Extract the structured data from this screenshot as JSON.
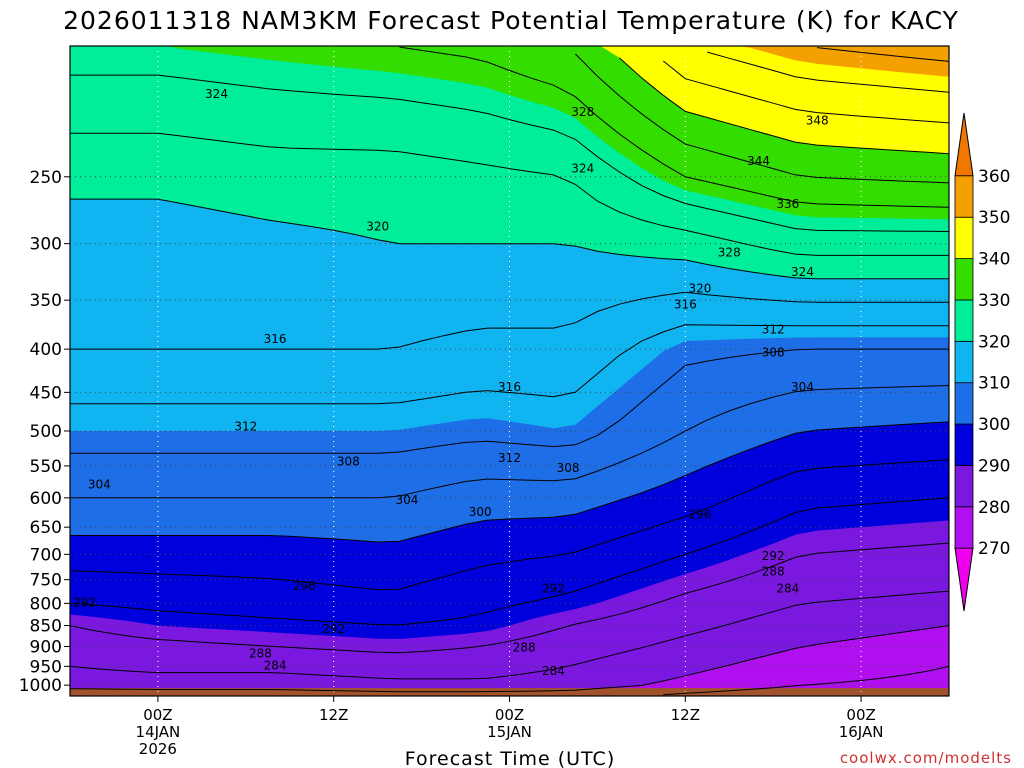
{
  "chart_data": {
    "type": "heatmap",
    "title": "2026011318 NAM3KM Forecast Potential Temperature (K) for KACY",
    "xlabel": "Forecast Time (UTC)",
    "ylabel": "",
    "credit": "coolwx.com/modelts",
    "x_range_hours": [
      -6,
      54
    ],
    "y_range_hpa": [
      1030,
      175
    ],
    "y_ticks": [
      {
        "value": 250,
        "label": "250"
      },
      {
        "value": 300,
        "label": "300"
      },
      {
        "value": 350,
        "label": "350"
      },
      {
        "value": 400,
        "label": "400"
      },
      {
        "value": 450,
        "label": "450"
      },
      {
        "value": 500,
        "label": "500"
      },
      {
        "value": 550,
        "label": "550"
      },
      {
        "value": 600,
        "label": "600"
      },
      {
        "value": 650,
        "label": "650"
      },
      {
        "value": 700,
        "label": "700"
      },
      {
        "value": 750,
        "label": "750"
      },
      {
        "value": 800,
        "label": "800"
      },
      {
        "value": 850,
        "label": "850"
      },
      {
        "value": 900,
        "label": "900"
      },
      {
        "value": 950,
        "label": "950"
      },
      {
        "value": 1000,
        "label": "1000"
      }
    ],
    "x_ticks": [
      {
        "hour": 0,
        "lines": [
          "00Z",
          "14JAN",
          "2026"
        ]
      },
      {
        "hour": 12,
        "lines": [
          "12Z"
        ]
      },
      {
        "hour": 24,
        "lines": [
          "00Z",
          "15JAN"
        ]
      },
      {
        "hour": 36,
        "lines": [
          "12Z"
        ]
      },
      {
        "hour": 48,
        "lines": [
          "00Z",
          "16JAN"
        ]
      }
    ],
    "colorbar": {
      "levels": [
        270,
        280,
        290,
        300,
        310,
        320,
        330,
        340,
        350,
        360
      ],
      "labels": [
        "270",
        "280",
        "290",
        "300",
        "310",
        "320",
        "330",
        "340",
        "350",
        "360"
      ],
      "colors": [
        "#ee00ee",
        "#b010f0",
        "#7a18e0",
        "#0000dd",
        "#1e6ee8",
        "#10b4f0",
        "#00ee99",
        "#33dd00",
        "#ffff00",
        "#f4a000",
        "#f07800"
      ]
    },
    "contour_interval_k": 4,
    "contour_profiles": [
      {
        "hour": -6,
        "values": [
          {
            "p": 1030,
            "theta": 276
          },
          {
            "p": 1000,
            "theta": 282
          },
          {
            "p": 950,
            "theta": 284
          },
          {
            "p": 900,
            "theta": 286
          },
          {
            "p": 850,
            "theta": 288
          },
          {
            "p": 800,
            "theta": 292
          },
          {
            "p": 700,
            "theta": 298
          },
          {
            "p": 600,
            "theta": 304
          },
          {
            "p": 500,
            "theta": 310
          },
          {
            "p": 400,
            "theta": 316
          },
          {
            "p": 300,
            "theta": 318
          },
          {
            "p": 250,
            "theta": 321
          },
          {
            "p": 175,
            "theta": 330
          }
        ]
      },
      {
        "hour": 0,
        "values": [
          {
            "p": 1030,
            "theta": 277
          },
          {
            "p": 1000,
            "theta": 282
          },
          {
            "p": 950,
            "theta": 285
          },
          {
            "p": 900,
            "theta": 287
          },
          {
            "p": 850,
            "theta": 290
          },
          {
            "p": 800,
            "theta": 293
          },
          {
            "p": 700,
            "theta": 298
          },
          {
            "p": 600,
            "theta": 304
          },
          {
            "p": 500,
            "theta": 310
          },
          {
            "p": 400,
            "theta": 316
          },
          {
            "p": 300,
            "theta": 318
          },
          {
            "p": 250,
            "theta": 321
          },
          {
            "p": 175,
            "theta": 330
          }
        ]
      },
      {
        "hour": 8,
        "values": [
          {
            "p": 1030,
            "theta": 277
          },
          {
            "p": 1000,
            "theta": 282
          },
          {
            "p": 950,
            "theta": 285
          },
          {
            "p": 900,
            "theta": 288
          },
          {
            "p": 850,
            "theta": 291
          },
          {
            "p": 800,
            "theta": 294
          },
          {
            "p": 700,
            "theta": 298
          },
          {
            "p": 600,
            "theta": 304
          },
          {
            "p": 500,
            "theta": 310
          },
          {
            "p": 400,
            "theta": 316
          },
          {
            "p": 300,
            "theta": 319
          },
          {
            "p": 250,
            "theta": 322
          },
          {
            "p": 175,
            "theta": 331
          }
        ]
      },
      {
        "hour": 16,
        "values": [
          {
            "p": 1030,
            "theta": 278
          },
          {
            "p": 1000,
            "theta": 283
          },
          {
            "p": 950,
            "theta": 286
          },
          {
            "p": 900,
            "theta": 289
          },
          {
            "p": 850,
            "theta": 292
          },
          {
            "p": 800,
            "theta": 295
          },
          {
            "p": 700,
            "theta": 299
          },
          {
            "p": 600,
            "theta": 304
          },
          {
            "p": 500,
            "theta": 310
          },
          {
            "p": 400,
            "theta": 316
          },
          {
            "p": 300,
            "theta": 320
          },
          {
            "p": 250,
            "theta": 322
          },
          {
            "p": 175,
            "theta": 332
          }
        ]
      },
      {
        "hour": 22,
        "values": [
          {
            "p": 1030,
            "theta": 278
          },
          {
            "p": 1000,
            "theta": 283
          },
          {
            "p": 950,
            "theta": 286
          },
          {
            "p": 900,
            "theta": 288
          },
          {
            "p": 850,
            "theta": 291
          },
          {
            "p": 800,
            "theta": 293
          },
          {
            "p": 700,
            "theta": 297
          },
          {
            "p": 600,
            "theta": 302
          },
          {
            "p": 500,
            "theta": 309
          },
          {
            "p": 400,
            "theta": 315
          },
          {
            "p": 300,
            "theta": 320
          },
          {
            "p": 250,
            "theta": 323
          },
          {
            "p": 175,
            "theta": 333
          }
        ]
      },
      {
        "hour": 28,
        "values": [
          {
            "p": 1030,
            "theta": 278
          },
          {
            "p": 1000,
            "theta": 282
          },
          {
            "p": 950,
            "theta": 284
          },
          {
            "p": 900,
            "theta": 286
          },
          {
            "p": 850,
            "theta": 288
          },
          {
            "p": 800,
            "theta": 291
          },
          {
            "p": 700,
            "theta": 296
          },
          {
            "p": 600,
            "theta": 302
          },
          {
            "p": 500,
            "theta": 310
          },
          {
            "p": 400,
            "theta": 315
          },
          {
            "p": 300,
            "theta": 320
          },
          {
            "p": 250,
            "theta": 324
          },
          {
            "p": 175,
            "theta": 336
          }
        ]
      },
      {
        "hour": 36,
        "values": [
          {
            "p": 1030,
            "theta": 275
          },
          {
            "p": 1000,
            "theta": 279
          },
          {
            "p": 950,
            "theta": 281
          },
          {
            "p": 900,
            "theta": 283
          },
          {
            "p": 850,
            "theta": 285
          },
          {
            "p": 800,
            "theta": 287
          },
          {
            "p": 700,
            "theta": 292
          },
          {
            "p": 600,
            "theta": 298
          },
          {
            "p": 500,
            "theta": 304
          },
          {
            "p": 400,
            "theta": 309
          },
          {
            "p": 300,
            "theta": 322
          },
          {
            "p": 250,
            "theta": 332
          },
          {
            "p": 175,
            "theta": 348
          }
        ]
      },
      {
        "hour": 44,
        "values": [
          {
            "p": 1030,
            "theta": 273
          },
          {
            "p": 1000,
            "theta": 276
          },
          {
            "p": 950,
            "theta": 278
          },
          {
            "p": 900,
            "theta": 280
          },
          {
            "p": 850,
            "theta": 282
          },
          {
            "p": 800,
            "theta": 284
          },
          {
            "p": 700,
            "theta": 288
          },
          {
            "p": 600,
            "theta": 293
          },
          {
            "p": 500,
            "theta": 300
          },
          {
            "p": 400,
            "theta": 308
          },
          {
            "p": 300,
            "theta": 326
          },
          {
            "p": 250,
            "theta": 336
          },
          {
            "p": 175,
            "theta": 352
          }
        ]
      },
      {
        "hour": 54,
        "values": [
          {
            "p": 1030,
            "theta": 272
          },
          {
            "p": 1000,
            "theta": 275
          },
          {
            "p": 950,
            "theta": 276
          },
          {
            "p": 900,
            "theta": 278
          },
          {
            "p": 850,
            "theta": 280
          },
          {
            "p": 800,
            "theta": 283
          },
          {
            "p": 700,
            "theta": 287
          },
          {
            "p": 600,
            "theta": 292
          },
          {
            "p": 500,
            "theta": 299
          },
          {
            "p": 400,
            "theta": 308
          },
          {
            "p": 300,
            "theta": 326
          },
          {
            "p": 250,
            "theta": 337
          },
          {
            "p": 175,
            "theta": 354
          }
        ]
      }
    ],
    "contour_labels": [
      {
        "text": "324",
        "hour": 4,
        "p": 200
      },
      {
        "text": "328",
        "hour": 29,
        "p": 210
      },
      {
        "text": "324",
        "hour": 29,
        "p": 245
      },
      {
        "text": "348",
        "hour": 45,
        "p": 215
      },
      {
        "text": "344",
        "hour": 41,
        "p": 240
      },
      {
        "text": "336",
        "hour": 43,
        "p": 270
      },
      {
        "text": "328",
        "hour": 39,
        "p": 308
      },
      {
        "text": "324",
        "hour": 44,
        "p": 325
      },
      {
        "text": "320",
        "hour": 37,
        "p": 340
      },
      {
        "text": "316",
        "hour": 36,
        "p": 355
      },
      {
        "text": "320",
        "hour": 15,
        "p": 287
      },
      {
        "text": "316",
        "hour": 8,
        "p": 390
      },
      {
        "text": "312",
        "hour": 42,
        "p": 380
      },
      {
        "text": "308",
        "hour": 42,
        "p": 405
      },
      {
        "text": "304",
        "hour": 44,
        "p": 445
      },
      {
        "text": "316",
        "hour": 24,
        "p": 445
      },
      {
        "text": "312",
        "hour": 6,
        "p": 495
      },
      {
        "text": "312",
        "hour": 24,
        "p": 540
      },
      {
        "text": "308",
        "hour": 13,
        "p": 545
      },
      {
        "text": "308",
        "hour": 28,
        "p": 555
      },
      {
        "text": "304",
        "hour": -4,
        "p": 580
      },
      {
        "text": "304",
        "hour": 17,
        "p": 605
      },
      {
        "text": "300",
        "hour": 22,
        "p": 625
      },
      {
        "text": "296",
        "hour": 37,
        "p": 630
      },
      {
        "text": "292",
        "hour": 42,
        "p": 705
      },
      {
        "text": "288",
        "hour": 42,
        "p": 735
      },
      {
        "text": "284",
        "hour": 43,
        "p": 770
      },
      {
        "text": "296",
        "hour": 10,
        "p": 765
      },
      {
        "text": "292",
        "hour": 27,
        "p": 770
      },
      {
        "text": "292",
        "hour": -5,
        "p": 800
      },
      {
        "text": "292",
        "hour": 12,
        "p": 860
      },
      {
        "text": "288",
        "hour": 7,
        "p": 920
      },
      {
        "text": "288",
        "hour": 25,
        "p": 905
      },
      {
        "text": "284",
        "hour": 8,
        "p": 950
      },
      {
        "text": "284",
        "hour": 27,
        "p": 965
      }
    ]
  }
}
